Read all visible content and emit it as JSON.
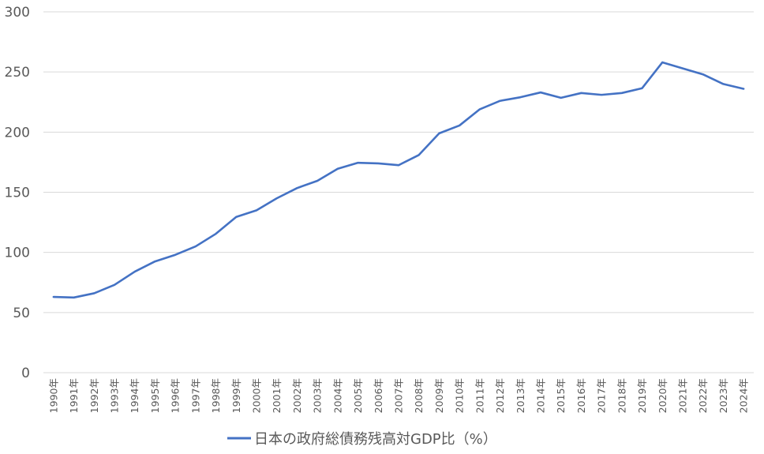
{
  "chart_data": {
    "type": "line",
    "categories": [
      "1990年",
      "1991年",
      "1992年",
      "1993年",
      "1994年",
      "1995年",
      "1996年",
      "1997年",
      "1998年",
      "1999年",
      "2000年",
      "2001年",
      "2002年",
      "2003年",
      "2004年",
      "2005年",
      "2006年",
      "2007年",
      "2008年",
      "2009年",
      "2010年",
      "2011年",
      "2012年",
      "2013年",
      "2014年",
      "2015年",
      "2016年",
      "2017年",
      "2018年",
      "2019年",
      "2020年",
      "2021年",
      "2022年",
      "2023年",
      "2024年"
    ],
    "series": [
      {
        "name": "日本の政府総債務残高対GDP比（%）",
        "color": "#4472C4",
        "values": [
          63,
          62.5,
          66,
          73,
          84,
          92.5,
          98,
          105,
          115.5,
          129.5,
          135,
          145,
          153.5,
          159.5,
          169.5,
          174.5,
          174,
          172.5,
          181,
          199,
          205.5,
          219,
          226,
          229,
          233,
          228.5,
          232.5,
          231,
          232.5,
          236.5,
          258,
          253,
          248,
          240,
          236
        ]
      }
    ],
    "ylim": [
      0,
      300
    ],
    "yticks": [
      0,
      50,
      100,
      150,
      200,
      250,
      300
    ],
    "grid": true,
    "legend": "bottom"
  },
  "colors": {
    "grid": "#D9D9D9",
    "axis_text": "#595959"
  }
}
